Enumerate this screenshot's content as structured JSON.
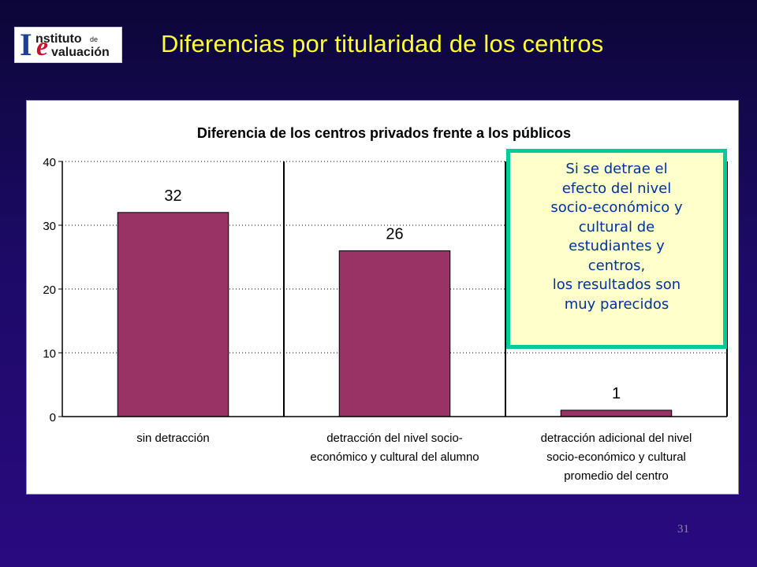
{
  "logo": {
    "letter_i": "I",
    "text_line1": "nstituto",
    "text_de": "de",
    "letter_e": "e",
    "text_line2": "valuación"
  },
  "slide_title": "Diferencias por titularidad de los centros",
  "page_number": "31",
  "callout": {
    "text": "Si se detrae el\nefecto del nivel\nsocio-económico y\ncultural de\nestudiantes y\ncentros,\nlos resultados son\nmuy parecidos"
  },
  "colors": {
    "bar": "#993366",
    "callout_border": "#00cc99",
    "callout_bg": "#ffffcc",
    "callout_text": "#003399",
    "title": "#ffff33"
  },
  "chart_data": {
    "type": "bar",
    "title": "Diferencia de los centros privados frente a los públicos",
    "categories": [
      [
        "sin detracción"
      ],
      [
        "detracción del nivel socio-",
        "económico y cultural del alumno"
      ],
      [
        "detracción adicional del nivel",
        "socio-económico y cultural",
        "promedio del centro"
      ]
    ],
    "values": [
      32,
      26,
      1
    ],
    "data_labels": [
      "32",
      "26",
      "1"
    ],
    "ylim": [
      0,
      40
    ],
    "yticks": [
      0,
      10,
      20,
      30,
      40
    ],
    "xlabel": "",
    "ylabel": "",
    "grid": "horizontal dotted",
    "legend": "none"
  }
}
